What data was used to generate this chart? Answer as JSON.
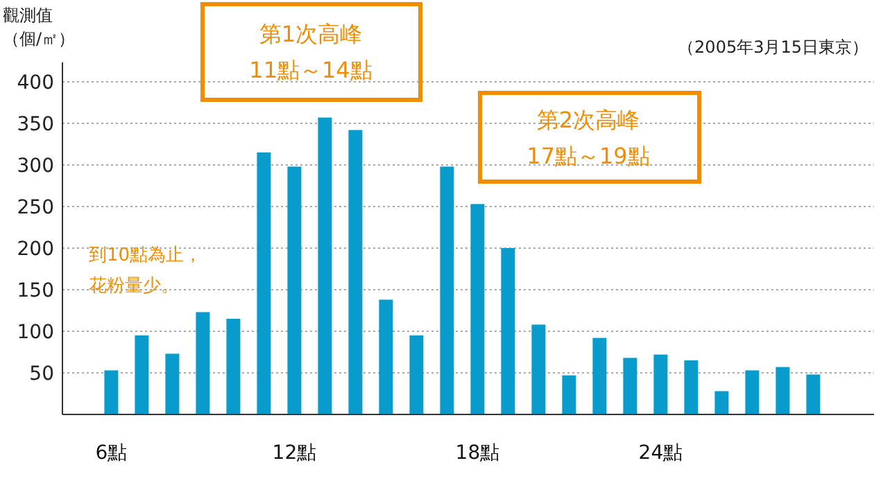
{
  "chart_data": {
    "type": "bar",
    "ylabel": "觀測值（個/㎡）",
    "subtitle": "（2005年3月15日東京）",
    "categories": [
      "6點",
      null,
      null,
      null,
      null,
      null,
      "12點",
      null,
      null,
      null,
      null,
      null,
      "18點",
      null,
      null,
      null,
      null,
      null,
      "24點",
      null,
      null,
      null,
      null,
      null
    ],
    "values": [
      53,
      95,
      73,
      123,
      115,
      315,
      298,
      357,
      342,
      138,
      95,
      298,
      253,
      200,
      108,
      47,
      92,
      68,
      72,
      65,
      28,
      53,
      57,
      48
    ],
    "color": "#0a9bcd",
    "ylim": [
      0,
      400
    ],
    "yticks": [
      50,
      100,
      150,
      200,
      250,
      300,
      350,
      400
    ],
    "grid": "y",
    "annotations": [
      "第1次高峰\n11點～14點",
      "第2次高峰\n17點～19點",
      "到10點為止，花粉量少。"
    ]
  }
}
